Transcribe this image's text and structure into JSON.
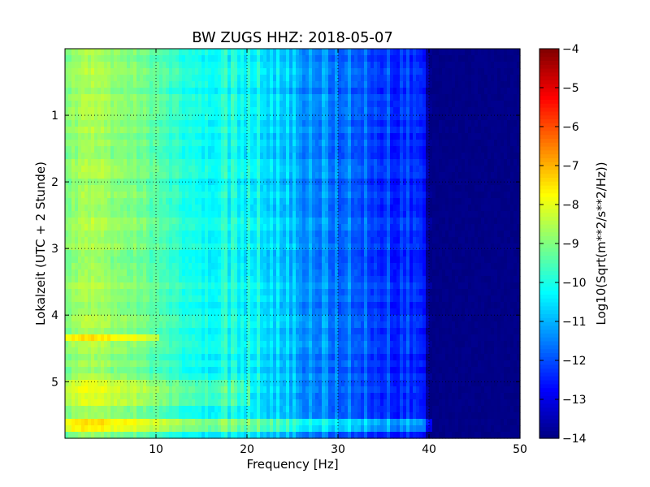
{
  "chart_data": {
    "type": "heatmap",
    "title": "BW ZUGS HHZ: 2018-05-07",
    "xlabel": "Frequency [Hz]",
    "ylabel": "Lokalzeit (UTC + 2 Stunde)",
    "xlim": [
      0,
      50
    ],
    "ylim": [
      5.85,
      0
    ],
    "y_inverted": true,
    "xticks": [
      10,
      20,
      30,
      40,
      50
    ],
    "xtick_labels": [
      "10",
      "20",
      "30",
      "40",
      "50"
    ],
    "yticks": [
      1,
      2,
      3,
      4,
      5
    ],
    "ytick_labels": [
      "1",
      "2",
      "3",
      "4",
      "5"
    ],
    "grid": "dotted",
    "colormap": "jet",
    "colorbar": {
      "label": "Log10(Sqrt(m**2/s**2/Hz))",
      "range": [
        -14,
        -4
      ],
      "ticks": [
        -4,
        -5,
        -6,
        -7,
        -8,
        -9,
        -10,
        -11,
        -12,
        -13,
        -14
      ],
      "tick_labels": [
        "−4",
        "−5",
        "−6",
        "−7",
        "−8",
        "−9",
        "−10",
        "−11",
        "−12",
        "−13",
        "−14"
      ]
    },
    "frequency_profile_hz": [
      0,
      2,
      5,
      8,
      10,
      12,
      14,
      16,
      18,
      20,
      22,
      24,
      26,
      28,
      30,
      32,
      34,
      36,
      38,
      39,
      40,
      41,
      42,
      45,
      50
    ],
    "frequency_profile_value": [
      -9.0,
      -8.5,
      -8.8,
      -9.1,
      -9.4,
      -9.8,
      -10.1,
      -10.2,
      -10.4,
      -10.5,
      -10.7,
      -11.0,
      -11.4,
      -11.6,
      -11.8,
      -12.0,
      -12.2,
      -12.4,
      -12.6,
      -12.9,
      -13.8,
      -14.0,
      -14.0,
      -14.0,
      -14.0
    ],
    "spectral_lines_hz": [
      17.2,
      17.6,
      18.6,
      19.4,
      20.3,
      21.3,
      22.6,
      23.4,
      24.6,
      25.1,
      27.0,
      28.6,
      29.8,
      31.3,
      32.9,
      35.6,
      37.0,
      37.6,
      38.6,
      39.3
    ],
    "noisy_bands": [
      {
        "t_start": 4.33,
        "t_end": 4.37,
        "f_max": 10,
        "delta": 1.1
      },
      {
        "t_start": 5.0,
        "t_end": 5.35,
        "f_max": 20,
        "delta": 0.6
      },
      {
        "t_start": 5.55,
        "t_end": 5.75,
        "f_max": 40,
        "delta": 1.0
      }
    ]
  }
}
